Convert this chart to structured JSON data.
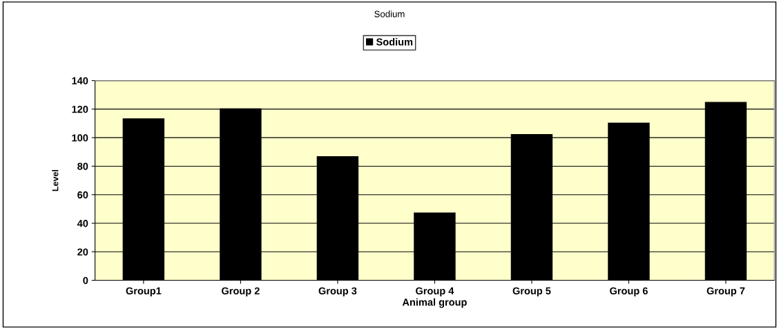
{
  "chart_data": {
    "type": "bar",
    "title": "Sodium",
    "xlabel": "Animal group",
    "ylabel": "Level",
    "categories": [
      "Group1",
      "Group 2",
      "Group 3",
      "Group 4",
      "Group 5",
      "Group 6",
      "Group 7"
    ],
    "series": [
      {
        "name": "Sodium",
        "color": "#000000",
        "values": [
          113.5,
          120.5,
          87,
          47.5,
          102.5,
          110.5,
          125
        ]
      }
    ],
    "ylim": [
      0,
      140
    ],
    "yticks": [
      0,
      20,
      40,
      60,
      80,
      100,
      120,
      140
    ],
    "grid": "y",
    "legend": "top"
  }
}
